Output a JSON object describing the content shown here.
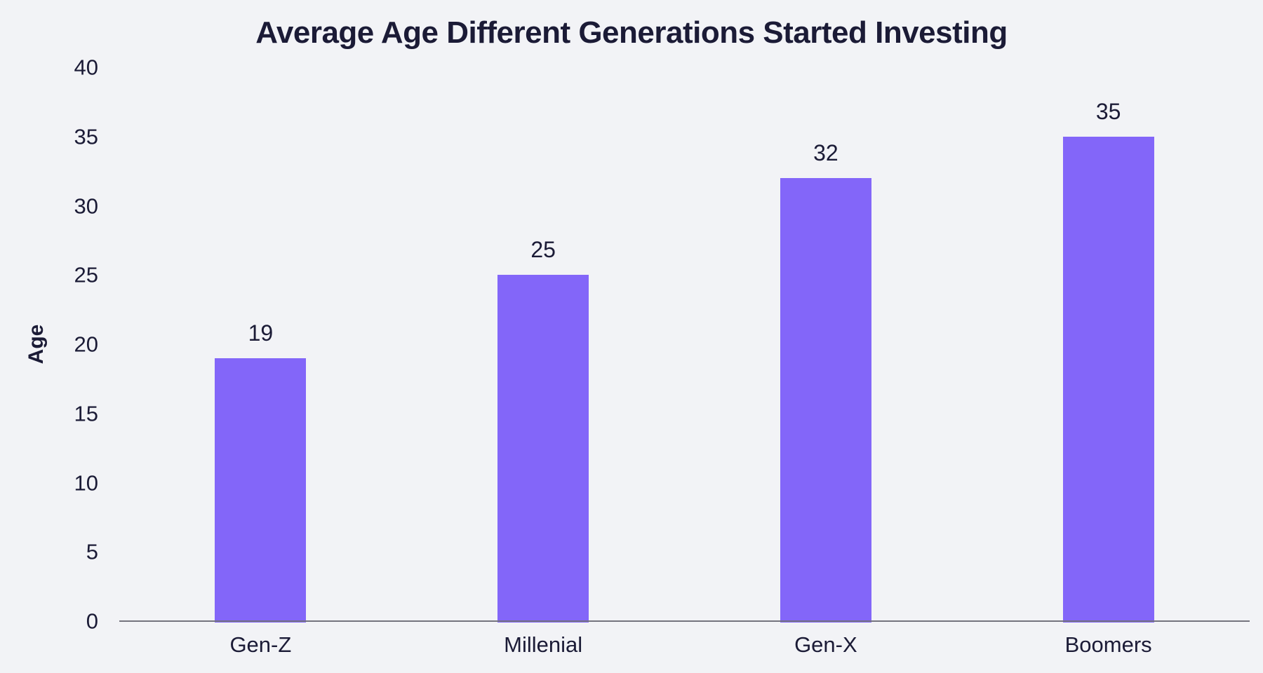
{
  "colors": {
    "background": "#F2F3F6",
    "bar": "#8366F9",
    "text": "#1B1B36",
    "axis_line": "#74747E"
  },
  "chart_data": {
    "type": "bar",
    "title": "Average Age Different Generations Started Investing",
    "categories": [
      "Gen-Z",
      "Millenial",
      "Gen-X",
      "Boomers"
    ],
    "values": [
      19,
      25,
      32,
      35
    ],
    "value_labels": [
      "19",
      "25",
      "32",
      "35"
    ],
    "xlabel": "",
    "ylabel": "Age",
    "ylim": [
      0,
      40
    ],
    "yticks": [
      0,
      5,
      10,
      15,
      20,
      25,
      30,
      35,
      40
    ],
    "grid": false,
    "legend": false
  }
}
